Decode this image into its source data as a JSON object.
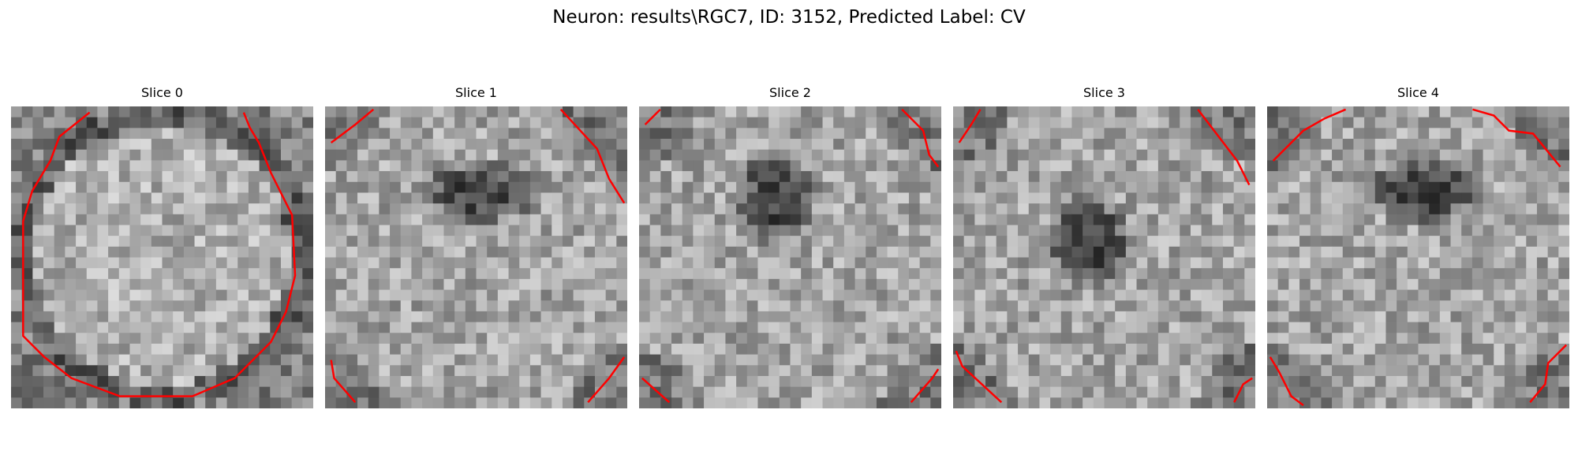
{
  "figure": {
    "title": "Neuron: results\\RGC7, ID: 3152, Predicted Label: CV"
  },
  "slices": [
    {
      "title": "Slice 0",
      "dark_spot": "none",
      "ring": "circle"
    },
    {
      "title": "Slice 1",
      "dark_spot": "upper-center",
      "ring": "corners"
    },
    {
      "title": "Slice 2",
      "dark_spot": "upper-left-center",
      "ring": "corners"
    },
    {
      "title": "Slice 3",
      "dark_spot": "center",
      "ring": "corners"
    },
    {
      "title": "Slice 4",
      "dark_spot": "upper-center",
      "ring": "corners"
    }
  ],
  "colors": {
    "contour": "#ff0000",
    "colormap": "gray"
  }
}
